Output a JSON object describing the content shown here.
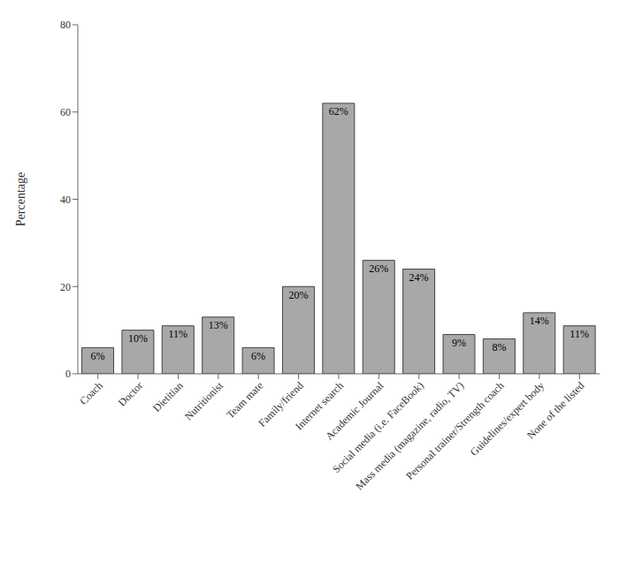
{
  "chart_data": {
    "type": "bar",
    "categories": [
      "Coach",
      "Doctor",
      "Dietitian",
      "Nutritionist",
      "Team mate",
      "Family/friend",
      "Internet search",
      "Academic Journal",
      "Social media (i.e. FaceBook)",
      "Mass media (magazine, radio, TV)",
      "Personal trainer/Strength coach",
      "Guidelines/expert body",
      "None of the listed"
    ],
    "values": [
      6,
      10,
      11,
      13,
      6,
      20,
      62,
      26,
      24,
      9,
      8,
      14,
      11
    ],
    "value_labels": [
      "6%",
      "10%",
      "11%",
      "13%",
      "6%",
      "20%",
      "62%",
      "26%",
      "24%",
      "9%",
      "8%",
      "14%",
      "11%"
    ],
    "data_labels": true,
    "color": "#a8a8a8",
    "ylabel": "Percentage",
    "ylim": [
      0,
      80
    ],
    "yticks": [
      0,
      20,
      40,
      60,
      80
    ],
    "grid": false
  }
}
